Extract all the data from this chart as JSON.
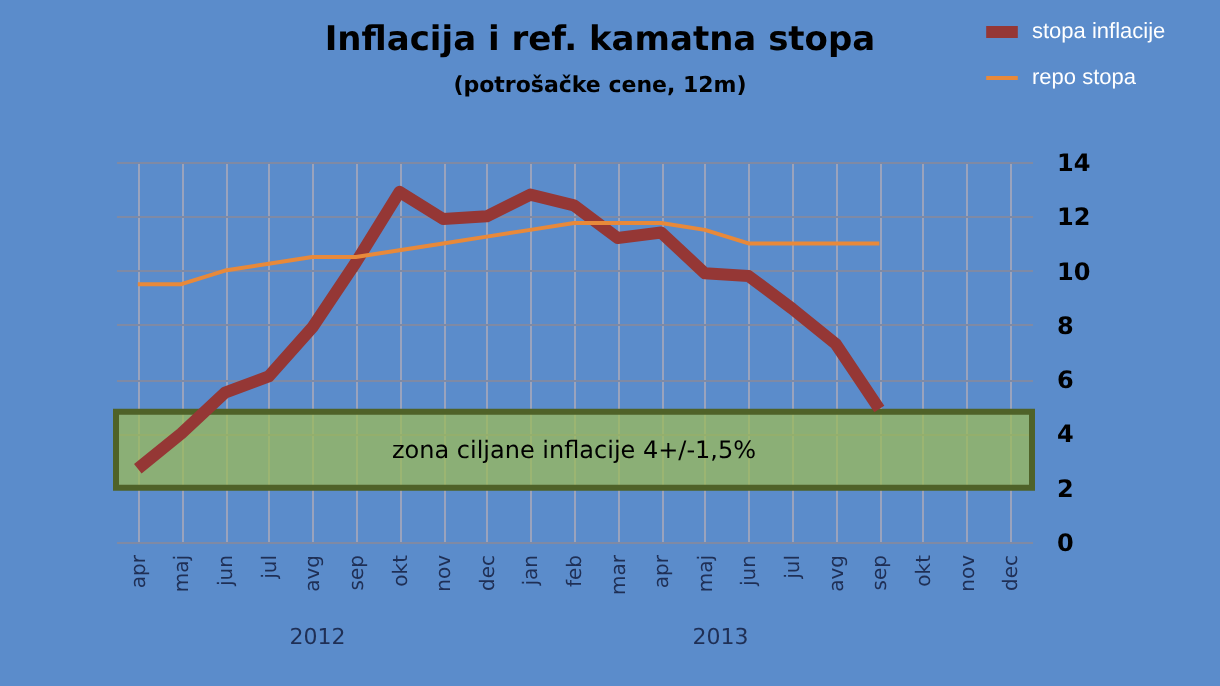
{
  "chart_data": {
    "type": "line",
    "title": "Inflacija i ref. kamatna stopa",
    "subtitle": "(potrošačke cene, 12m)",
    "categories": [
      "apr",
      "maj",
      "jun",
      "jul",
      "avg",
      "sep",
      "okt",
      "nov",
      "dec",
      "jan",
      "feb",
      "mar",
      "apr",
      "maj",
      "jun",
      "jul",
      "avg",
      "sep",
      "okt",
      "nov",
      "dec"
    ],
    "series": [
      {
        "name": "stopa inflacije",
        "color": "#953735",
        "values": [
          2.7,
          4.0,
          5.5,
          6.1,
          7.9,
          10.3,
          12.9,
          11.9,
          12.0,
          12.8,
          12.4,
          11.2,
          11.4,
          9.9,
          9.8,
          8.6,
          7.3,
          4.9,
          null,
          null,
          null
        ]
      },
      {
        "name": "repo stopa",
        "color": "#e8893a",
        "values": [
          9.5,
          9.5,
          10.0,
          10.25,
          10.5,
          10.5,
          10.75,
          11.0,
          11.25,
          11.5,
          11.75,
          11.75,
          11.75,
          11.5,
          11.0,
          11.0,
          11.0,
          11.0,
          null,
          null,
          null
        ]
      }
    ],
    "ylim": [
      0,
      14
    ],
    "yticks": [
      0,
      2,
      4,
      6,
      8,
      10,
      12,
      14
    ],
    "grid": true,
    "legend": "top right",
    "bands": [
      {
        "axis": "y",
        "from": 2,
        "to": 4.8,
        "label": "zona ciljane inflacije 4+/-1,5%",
        "color": "#9bbb59"
      }
    ],
    "annotations": [
      "2012",
      "2013"
    ]
  }
}
